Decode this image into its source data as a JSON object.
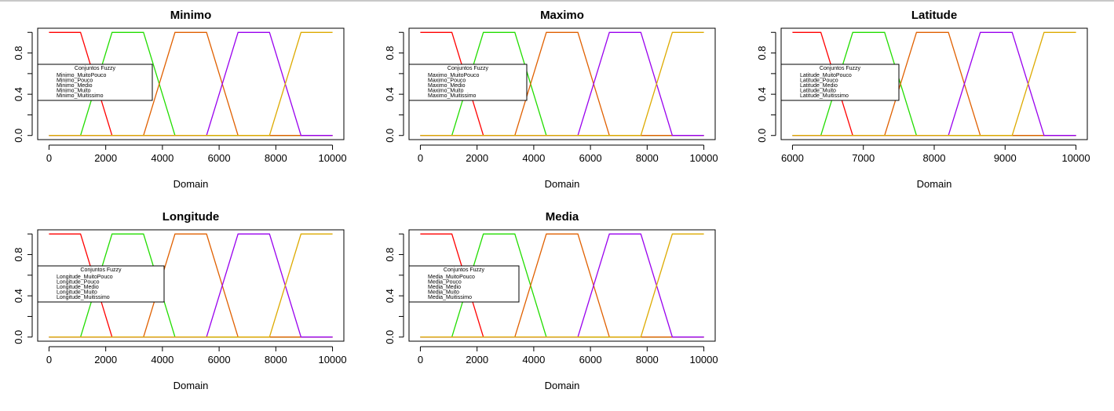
{
  "chart_data": [
    {
      "type": "line",
      "title": "Minimo",
      "xlabel": "Domain",
      "ylabel": "",
      "xlim": [
        0,
        10000
      ],
      "ylim": [
        0,
        1
      ],
      "xticks": [
        0,
        2000,
        4000,
        6000,
        8000,
        10000
      ],
      "yticks": [
        0.0,
        0.4,
        0.8
      ],
      "ytick_labels": [
        "0.0",
        "0.4",
        "0.8"
      ],
      "legend": {
        "title": "Conjuntos Fuzzy",
        "position": "left"
      },
      "series": [
        {
          "name": "Minimo_MuitoPouco",
          "color": "#ff0000",
          "x": [
            0,
            1111,
            2222,
            10000
          ],
          "y": [
            1,
            1,
            0,
            0
          ]
        },
        {
          "name": "Minimo_Pouco",
          "color": "#22dd00",
          "x": [
            0,
            1111,
            2222,
            3333,
            4444,
            10000
          ],
          "y": [
            0,
            0,
            1,
            1,
            0,
            0
          ]
        },
        {
          "name": "Minimo_Medio",
          "color": "#e06000",
          "x": [
            0,
            3333,
            4444,
            5556,
            6667,
            10000
          ],
          "y": [
            0,
            0,
            1,
            1,
            0,
            0
          ]
        },
        {
          "name": "Minimo_Muito",
          "color": "#9900ee",
          "x": [
            0,
            5556,
            6667,
            7778,
            8889,
            10000
          ],
          "y": [
            0,
            0,
            1,
            1,
            0,
            0
          ]
        },
        {
          "name": "Minimo_Muitissimo",
          "color": "#ddaa00",
          "x": [
            0,
            7778,
            8889,
            10000
          ],
          "y": [
            0,
            0,
            1,
            1
          ]
        }
      ]
    },
    {
      "type": "line",
      "title": "Maximo",
      "xlabel": "Domain",
      "ylabel": "",
      "xlim": [
        0,
        10000
      ],
      "ylim": [
        0,
        1
      ],
      "xticks": [
        0,
        2000,
        4000,
        6000,
        8000,
        10000
      ],
      "yticks": [
        0.0,
        0.4,
        0.8
      ],
      "ytick_labels": [
        "0.0",
        "0.4",
        "0.8"
      ],
      "legend": {
        "title": "Conjuntos Fuzzy",
        "position": "left"
      },
      "series": [
        {
          "name": "Maximo_MuitoPouco",
          "color": "#ff0000",
          "x": [
            0,
            1111,
            2222,
            10000
          ],
          "y": [
            1,
            1,
            0,
            0
          ]
        },
        {
          "name": "Maximo_Pouco",
          "color": "#22dd00",
          "x": [
            0,
            1111,
            2222,
            3333,
            4444,
            10000
          ],
          "y": [
            0,
            0,
            1,
            1,
            0,
            0
          ]
        },
        {
          "name": "Maximo_Medio",
          "color": "#e06000",
          "x": [
            0,
            3333,
            4444,
            5556,
            6667,
            10000
          ],
          "y": [
            0,
            0,
            1,
            1,
            0,
            0
          ]
        },
        {
          "name": "Maximo_Muito",
          "color": "#9900ee",
          "x": [
            0,
            5556,
            6667,
            7778,
            8889,
            10000
          ],
          "y": [
            0,
            0,
            1,
            1,
            0,
            0
          ]
        },
        {
          "name": "Maximo_Muitissimo",
          "color": "#ddaa00",
          "x": [
            0,
            7778,
            8889,
            10000
          ],
          "y": [
            0,
            0,
            1,
            1
          ]
        }
      ]
    },
    {
      "type": "line",
      "title": "Latitude",
      "xlabel": "Domain",
      "ylabel": "",
      "xlim": [
        6000,
        10000
      ],
      "ylim": [
        0,
        1
      ],
      "xticks": [
        6000,
        7000,
        8000,
        9000,
        10000
      ],
      "yticks": [
        0.0,
        0.4,
        0.8
      ],
      "ytick_labels": [
        "0.0",
        "0.4",
        "0.8"
      ],
      "legend": {
        "title": "Conjuntos Fuzzy",
        "position": "left"
      },
      "series": [
        {
          "name": "Latitude_MuitoPouco",
          "color": "#ff0000",
          "x": [
            6000,
            6400,
            6850,
            10000
          ],
          "y": [
            1,
            1,
            0,
            0
          ]
        },
        {
          "name": "Latitude_Pouco",
          "color": "#22dd00",
          "x": [
            6000,
            6400,
            6850,
            7300,
            7750,
            10000
          ],
          "y": [
            0,
            0,
            1,
            1,
            0,
            0
          ]
        },
        {
          "name": "Latitude_Medio",
          "color": "#e06000",
          "x": [
            6000,
            7300,
            7750,
            8200,
            8650,
            10000
          ],
          "y": [
            0,
            0,
            1,
            1,
            0,
            0
          ]
        },
        {
          "name": "Latitude_Muito",
          "color": "#9900ee",
          "x": [
            6000,
            8200,
            8650,
            9100,
            9550,
            10000
          ],
          "y": [
            0,
            0,
            1,
            1,
            0,
            0
          ]
        },
        {
          "name": "Latitude_Muitissimo",
          "color": "#ddaa00",
          "x": [
            6000,
            9100,
            9550,
            10000
          ],
          "y": [
            0,
            0,
            1,
            1
          ]
        }
      ]
    },
    {
      "type": "line",
      "title": "Longitude",
      "xlabel": "Domain",
      "ylabel": "",
      "xlim": [
        0,
        10000
      ],
      "ylim": [
        0,
        1
      ],
      "xticks": [
        0,
        2000,
        4000,
        6000,
        8000,
        10000
      ],
      "yticks": [
        0.0,
        0.4,
        0.8
      ],
      "ytick_labels": [
        "0.0",
        "0.4",
        "0.8"
      ],
      "legend": {
        "title": "Conjuntos Fuzzy",
        "position": "left"
      },
      "series": [
        {
          "name": "Longitude_MuitoPouco",
          "color": "#ff0000",
          "x": [
            0,
            1111,
            2222,
            10000
          ],
          "y": [
            1,
            1,
            0,
            0
          ]
        },
        {
          "name": "Longitude_Pouco",
          "color": "#22dd00",
          "x": [
            0,
            1111,
            2222,
            3333,
            4444,
            10000
          ],
          "y": [
            0,
            0,
            1,
            1,
            0,
            0
          ]
        },
        {
          "name": "Longitude_Medio",
          "color": "#e06000",
          "x": [
            0,
            3333,
            4444,
            5556,
            6667,
            10000
          ],
          "y": [
            0,
            0,
            1,
            1,
            0,
            0
          ]
        },
        {
          "name": "Longitude_Muito",
          "color": "#9900ee",
          "x": [
            0,
            5556,
            6667,
            7778,
            8889,
            10000
          ],
          "y": [
            0,
            0,
            1,
            1,
            0,
            0
          ]
        },
        {
          "name": "Longitude_Muitissimo",
          "color": "#ddaa00",
          "x": [
            0,
            7778,
            8889,
            10000
          ],
          "y": [
            0,
            0,
            1,
            1
          ]
        }
      ]
    },
    {
      "type": "line",
      "title": "Media",
      "xlabel": "Domain",
      "ylabel": "",
      "xlim": [
        0,
        10000
      ],
      "ylim": [
        0,
        1
      ],
      "xticks": [
        0,
        2000,
        4000,
        6000,
        8000,
        10000
      ],
      "yticks": [
        0.0,
        0.4,
        0.8
      ],
      "ytick_labels": [
        "0.0",
        "0.4",
        "0.8"
      ],
      "legend": {
        "title": "Conjuntos Fuzzy",
        "position": "left"
      },
      "series": [
        {
          "name": "Media_MuitoPouco",
          "color": "#ff0000",
          "x": [
            0,
            1111,
            2222,
            10000
          ],
          "y": [
            1,
            1,
            0,
            0
          ]
        },
        {
          "name": "Media_Pouco",
          "color": "#22dd00",
          "x": [
            0,
            1111,
            2222,
            3333,
            4444,
            10000
          ],
          "y": [
            0,
            0,
            1,
            1,
            0,
            0
          ]
        },
        {
          "name": "Media_Medio",
          "color": "#e06000",
          "x": [
            0,
            3333,
            4444,
            5556,
            6667,
            10000
          ],
          "y": [
            0,
            0,
            1,
            1,
            0,
            0
          ]
        },
        {
          "name": "Media_Muito",
          "color": "#9900ee",
          "x": [
            0,
            5556,
            6667,
            7778,
            8889,
            10000
          ],
          "y": [
            0,
            0,
            1,
            1,
            0,
            0
          ]
        },
        {
          "name": "Media_Muitissimo",
          "color": "#ddaa00",
          "x": [
            0,
            7778,
            8889,
            10000
          ],
          "y": [
            0,
            0,
            1,
            1
          ]
        }
      ]
    }
  ]
}
